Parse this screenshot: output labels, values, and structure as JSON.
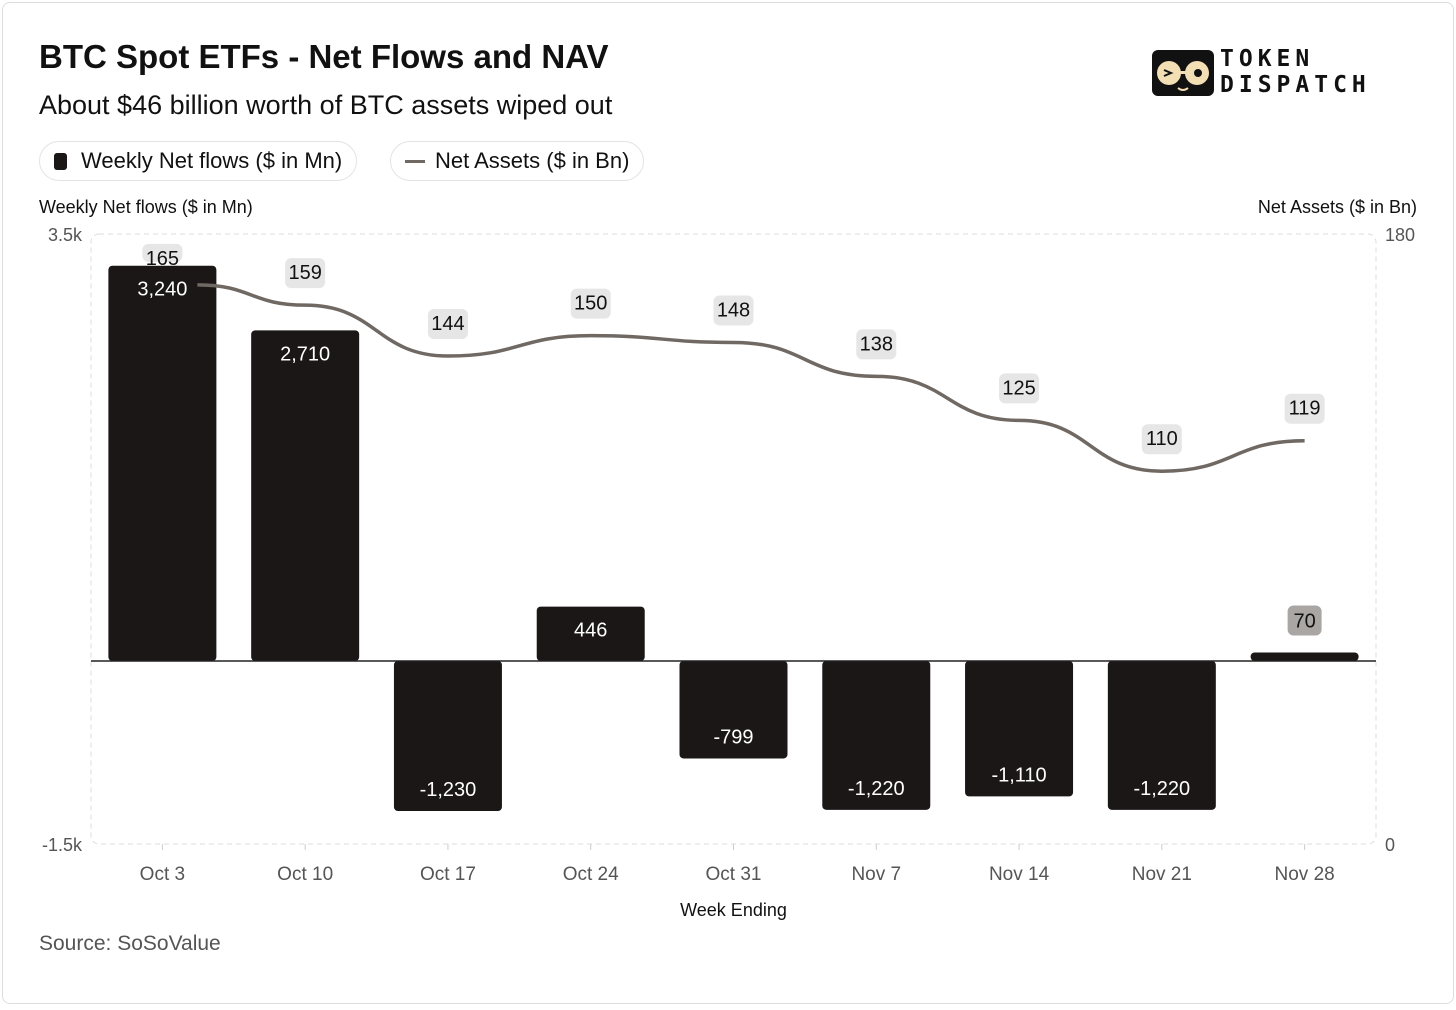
{
  "header": {
    "title": "BTC Spot ETFs - Net Flows and NAV",
    "subtitle": "About $46 billion worth of BTC assets wiped out"
  },
  "logo": {
    "text_line1": "TOKEN",
    "text_line2": "DISPATCH"
  },
  "legend": {
    "bar_label": "Weekly Net flows ($ in Mn)",
    "line_label": "Net Assets ($ in Bn)"
  },
  "source": "Source: SoSoValue",
  "colors": {
    "bar": "#1b1716",
    "line": "#6f6863",
    "label_bg": "#e6e6e6"
  },
  "chart_data": {
    "type": "bar+line",
    "xlabel": "Week Ending",
    "ylabel_left": "Weekly Net flows ($ in Mn)",
    "ylabel_right": "Net Assets ($ in Bn)",
    "ylim_left": [
      -1500,
      3500
    ],
    "ylim_right": [
      0,
      180
    ],
    "ytick_labels_left": [
      "3.5k",
      "-1.5k"
    ],
    "ytick_labels_right": [
      "180",
      "0"
    ],
    "categories": [
      "Oct 3",
      "Oct 10",
      "Oct 17",
      "Oct 24",
      "Oct 31",
      "Nov 7",
      "Nov 14",
      "Nov 21",
      "Nov 28"
    ],
    "series": [
      {
        "name": "Weekly Net flows ($ in Mn)",
        "type": "bar",
        "values": [
          3240,
          2710,
          -1230,
          446,
          -799,
          -1220,
          -1110,
          -1220,
          70
        ],
        "labels": [
          "3,240",
          "2,710",
          "-1,230",
          "446",
          "-799",
          "-1,220",
          "-1,110",
          "-1,220",
          "70"
        ]
      },
      {
        "name": "Net Assets ($ in Bn)",
        "type": "line",
        "values": [
          165,
          159,
          144,
          150,
          148,
          138,
          125,
          110,
          119
        ],
        "labels": [
          "165",
          "159",
          "144",
          "150",
          "148",
          "138",
          "125",
          "110",
          "119"
        ]
      }
    ],
    "grid": false,
    "legend_position": "top-left"
  }
}
